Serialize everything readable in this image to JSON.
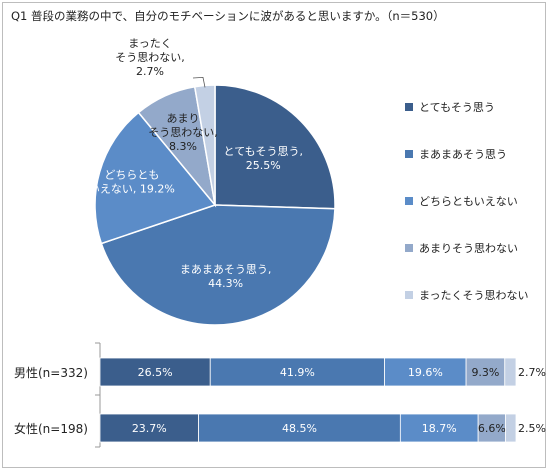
{
  "chart_data": [
    {
      "type": "pie",
      "title": "Q1 普段の業務の中で、自分のモチベーションに波があると思いますか。（n＝530）",
      "labels": [
        "とてもそう思う",
        "まあまあそう思う",
        "どちらともいえない",
        "あまりそう思わない",
        "まったくそう思わない"
      ],
      "values": [
        25.5,
        44.3,
        19.2,
        8.3,
        2.7
      ],
      "slice_labels": [
        [
          "とてもそう思う,",
          "25.5%"
        ],
        [
          "まあまあそう思う,",
          "44.3%"
        ],
        [
          "どちらとも",
          "いえない, 19.2%"
        ],
        [
          "あまり",
          "そう思わない,",
          "8.3%"
        ],
        [
          "まったく",
          "そう思わない,",
          "2.7%"
        ]
      ],
      "colors": [
        "#3b5e8c",
        "#4a78b0",
        "#5b8cc8",
        "#93a9ca",
        "#c3d0e4"
      ],
      "legend": "right"
    },
    {
      "type": "bar",
      "orientation": "horizontal",
      "stacked": true,
      "percent": true,
      "categories": [
        "男性(n=332)",
        "女性(n=198)"
      ],
      "series_order": [
        "とてもそう思う",
        "まあまあそう思う",
        "どちらともいえない",
        "あまりそう思わない",
        "まったくそう思わない"
      ],
      "rows": [
        [
          26.5,
          41.9,
          19.6,
          9.3,
          2.7
        ],
        [
          23.7,
          48.5,
          18.7,
          6.6,
          2.5
        ]
      ],
      "value_labels": [
        [
          "26.5%",
          "41.9%",
          "19.6%",
          "9.3%",
          "2.7%"
        ],
        [
          "23.7%",
          "48.5%",
          "18.7%",
          "6.6%",
          "2.5%"
        ]
      ]
    }
  ]
}
